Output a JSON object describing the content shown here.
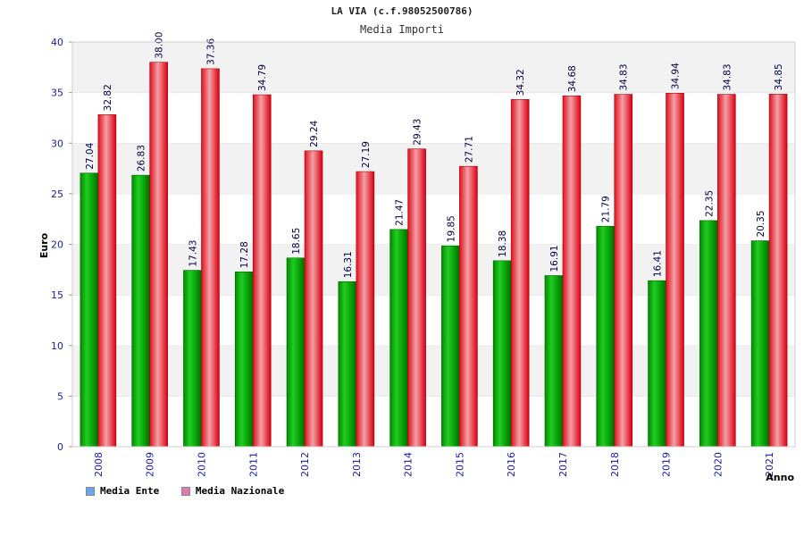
{
  "chart_data": {
    "type": "bar",
    "title": "LA VIA (c.f.98052500786)",
    "subtitle": "Media Importi",
    "xlabel": "Anno",
    "ylabel": "Euro",
    "ylim": [
      0,
      40
    ],
    "yticks": [
      0,
      5,
      10,
      15,
      20,
      25,
      30,
      35,
      40
    ],
    "grid": true,
    "legend_position": "bottom-left",
    "categories": [
      "2008",
      "2009",
      "2010",
      "2011",
      "2012",
      "2013",
      "2014",
      "2015",
      "2016",
      "2017",
      "2018",
      "2019",
      "2020",
      "2021"
    ],
    "series": [
      {
        "name": "Media Ente",
        "color": "#10b010",
        "legend_color": "#6aa6e8",
        "values": [
          27.04,
          26.83,
          17.43,
          17.28,
          18.65,
          16.31,
          21.47,
          19.85,
          18.38,
          16.91,
          21.79,
          16.41,
          22.35,
          20.35
        ],
        "labels": [
          "27.04",
          "26.83",
          "17.43",
          "17.28",
          "18.65",
          "16.31",
          "21.47",
          "19.85",
          "18.38",
          "16.91",
          "21.79",
          "16.41",
          "22.35",
          "20.35"
        ]
      },
      {
        "name": "Media Nazionale",
        "color": "#e8202a",
        "legend_color": "#e07ab0",
        "values": [
          32.82,
          38.0,
          37.36,
          34.79,
          29.24,
          27.19,
          29.43,
          27.71,
          34.32,
          34.68,
          34.83,
          34.94,
          34.83,
          34.85
        ],
        "labels": [
          "32.82",
          "38.00",
          "37.36",
          "34.79",
          "29.24",
          "27.19",
          "29.43",
          "27.71",
          "34.32",
          "34.68",
          "34.83",
          "34.94",
          "34.83",
          "34.85"
        ]
      }
    ]
  }
}
